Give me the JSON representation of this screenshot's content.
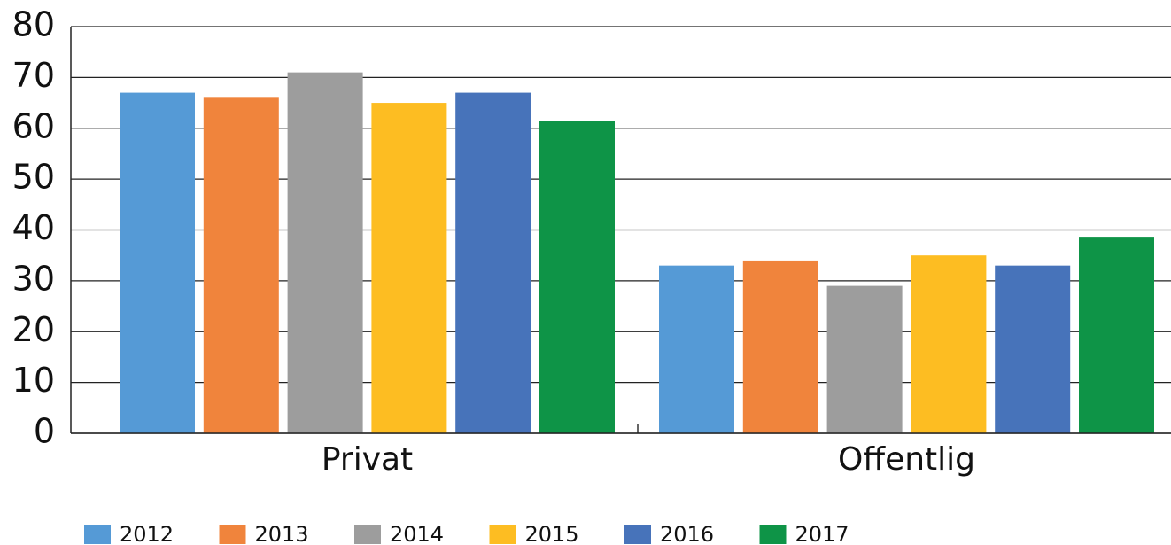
{
  "chart_data": {
    "type": "bar",
    "categories": [
      "Privat",
      "Offentlig"
    ],
    "series": [
      {
        "name": "2012",
        "color": "#559ad6",
        "values": [
          67,
          33
        ]
      },
      {
        "name": "2013",
        "color": "#f0843c",
        "values": [
          66,
          34
        ]
      },
      {
        "name": "2014",
        "color": "#9d9d9d",
        "values": [
          71,
          29
        ]
      },
      {
        "name": "2015",
        "color": "#fdbd22",
        "values": [
          65,
          35
        ]
      },
      {
        "name": "2016",
        "color": "#4773ba",
        "values": [
          67,
          33
        ]
      },
      {
        "name": "2017",
        "color": "#0e9447",
        "values": [
          61.5,
          38.5
        ]
      }
    ],
    "ylim": [
      0,
      80
    ],
    "yticks": [
      0,
      10,
      20,
      30,
      40,
      50,
      60,
      70,
      80
    ],
    "grid": true,
    "legend": "bottom"
  }
}
